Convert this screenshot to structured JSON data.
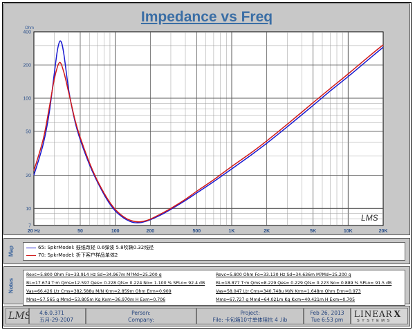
{
  "chart_data": {
    "type": "line",
    "title": "Impedance vs Freq",
    "ylabel": "Ohm",
    "xlabel": "",
    "xscale": "log",
    "yscale": "log",
    "xlim": [
      20,
      20000
    ],
    "ylim": [
      7,
      400
    ],
    "grid": true,
    "xticks": [
      {
        "value": 20,
        "label": "20  Hz"
      },
      {
        "value": 50,
        "label": "50"
      },
      {
        "value": 100,
        "label": "100"
      },
      {
        "value": 200,
        "label": "200"
      },
      {
        "value": 500,
        "label": "500"
      },
      {
        "value": 1000,
        "label": "1K"
      },
      {
        "value": 2000,
        "label": "2K"
      },
      {
        "value": 5000,
        "label": "5K"
      },
      {
        "value": 10000,
        "label": "10K"
      },
      {
        "value": 20000,
        "label": "20K"
      }
    ],
    "yticks": [
      {
        "value": 7,
        "label": "7"
      },
      {
        "value": 10,
        "label": "10"
      },
      {
        "value": 20,
        "label": "20"
      },
      {
        "value": 50,
        "label": "50"
      },
      {
        "value": 100,
        "label": "100"
      },
      {
        "value": 200,
        "label": "200"
      },
      {
        "value": 400,
        "label": "400"
      }
    ],
    "series": [
      {
        "name": "65: SpkrModel: 鼓纸改轻    0.6弹波    5.8吹鞅0.32线径",
        "color": "#1a1ad0",
        "x": [
          20,
          24,
          27,
          30,
          32,
          33.9,
          36,
          40,
          45,
          50,
          60,
          70,
          85,
          100,
          120,
          140,
          160,
          180,
          200,
          250,
          300,
          400,
          500,
          700,
          1000,
          1500,
          2000,
          3000,
          5000,
          7000,
          10000,
          15000,
          20000
        ],
        "y": [
          20,
          38,
          72,
          170,
          280,
          330,
          260,
          115,
          62,
          42,
          25,
          17.5,
          12,
          9.5,
          8.1,
          7.5,
          7.4,
          7.6,
          7.9,
          8.8,
          9.8,
          11.8,
          13.8,
          17.5,
          22.8,
          31,
          39,
          55,
          86,
          116,
          157,
          225,
          290
        ]
      },
      {
        "name": "70: SpkrModel: 折下客户样品单体2",
        "color": "#d01a1a",
        "x": [
          20,
          24,
          27,
          30,
          33.1,
          36,
          40,
          45,
          50,
          60,
          70,
          85,
          100,
          120,
          140,
          160,
          180,
          200,
          250,
          300,
          400,
          500,
          700,
          1000,
          1500,
          2000,
          3000,
          5000,
          7000,
          10000,
          15000,
          20000
        ],
        "y": [
          22,
          42,
          80,
          150,
          210,
          175,
          110,
          64,
          44,
          26,
          18,
          12.4,
          9.8,
          8.3,
          7.7,
          7.55,
          7.7,
          8.0,
          9.0,
          10.0,
          12.1,
          14.3,
          18.2,
          24,
          32.5,
          41,
          58,
          91,
          122,
          166,
          238,
          305
        ]
      }
    ]
  },
  "map": {
    "label": "Map",
    "entries": [
      {
        "text": "65: SpkrModel: 鼓纸改轻    0.6弹波    5.8吹鞅0.32线径",
        "color": "#1a1ad0"
      },
      {
        "text": "70: SpkrModel: 折下客户样品单体2",
        "color": "#d01a1a"
      }
    ]
  },
  "notes": {
    "label": "Notes",
    "left": [
      "Revc=5.800 Ohm  Fo=33.914 Hz  Sd=34.967m M?Md=25.200 g",
      "BL=17.674 T·m  Qms=12.597  Qes= 0.228  Qts= 0.224  No= 1.100 %  SPLo= 92.4 dB",
      "Vas=66.426 Ltr  Cms=382.588u M/N  Krm=2.859m Ohm  Erm=0.909",
      "Mms=57.565 g  Mmd=53.805m Kg  Kxm=36.970m H  Exm=0.706"
    ],
    "right": [
      "Revc=5.800 Ohm  Fo=33.130 Hz  Sd=34.636m M?Md=25.200 g",
      "BL=18.877 T·m  Qms=8.229  Qes= 0.229  Qts= 0.223  No= 0.889 %  SPLo= 91.5 dB",
      "Vas=58.047 Ltr  Cms=340.748u M/N  Krm=1.648m Ohm  Erm=0.973",
      "Mms=67.727 g  Mmd=64.021m Kg  Kxm=40.421m H  Exm=0.705"
    ]
  },
  "footer": {
    "logo": "LMS",
    "version": "4.6.0.371",
    "date_cn": "五月-29-2007",
    "person": "Person:",
    "company": "Company:",
    "project": "Project:",
    "file": "File: 卡包箱10寸单体阻抗 4 .lib",
    "date": "Feb 26, 2013",
    "time": "Tue  6:53 pm",
    "brand_main": "LINEAR",
    "brand_x": "X",
    "brand_sub": "S Y S T E M S"
  },
  "watermark": "LMS"
}
